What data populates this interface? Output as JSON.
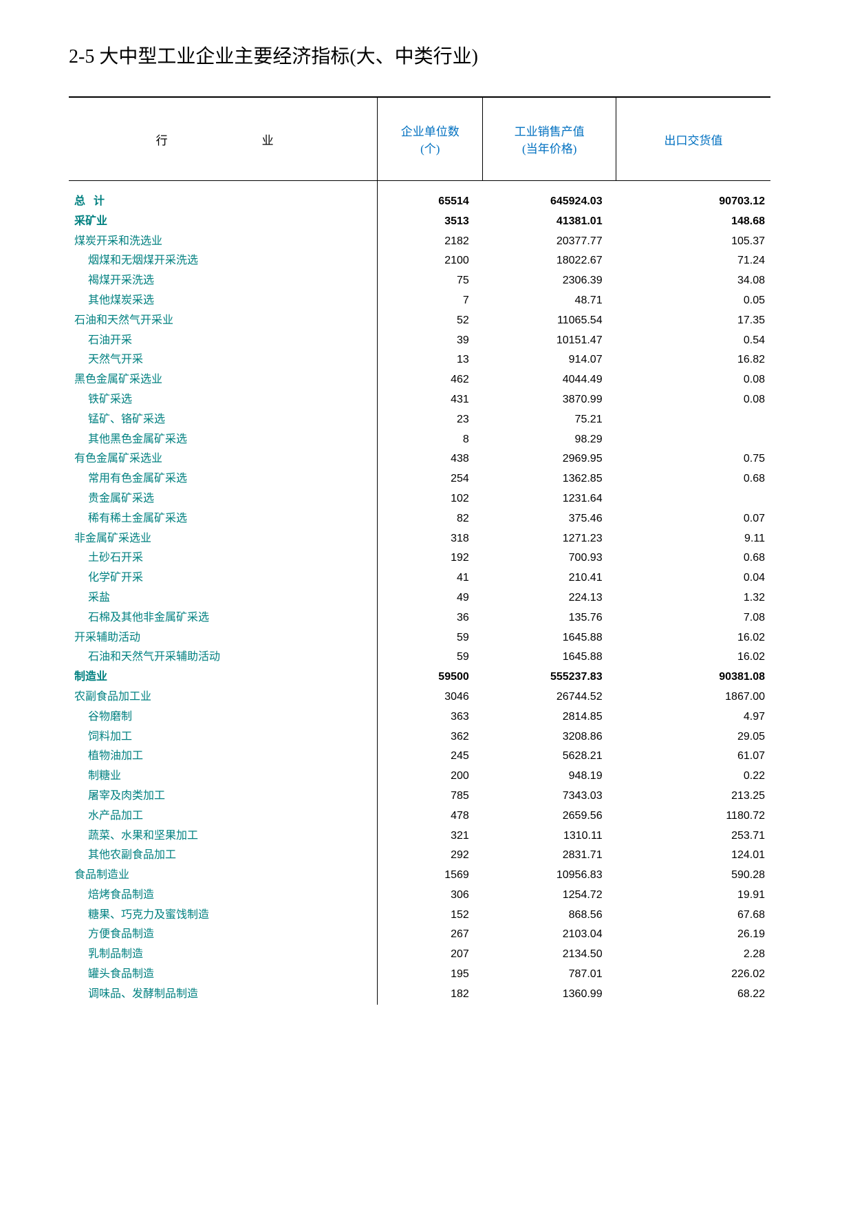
{
  "title": "2-5  大中型工业企业主要经济指标(大、中类行业)",
  "headers": {
    "industry": "行业",
    "count": "企业单位数\n(个)",
    "sales": "工业销售产值\n(当年价格)",
    "export": "出口交货值"
  },
  "table": {
    "col_widths_pct": [
      44,
      15,
      19,
      22
    ],
    "header_color": "#0070c0",
    "teal_color": "#008080",
    "border_color": "#000000",
    "font_size_body": 16,
    "font_size_header": 17,
    "font_size_title": 28
  },
  "rows": [
    {
      "label": "总计",
      "indent": 0,
      "teal": true,
      "bold": true,
      "spaced": true,
      "count": "65514",
      "sales": "645924.03",
      "export": "90703.12"
    },
    {
      "label": "采矿业",
      "indent": 0,
      "teal": true,
      "bold": true,
      "count": "3513",
      "sales": "41381.01",
      "export": "148.68"
    },
    {
      "label": "煤炭开采和洗选业",
      "indent": 0,
      "teal": true,
      "count": "2182",
      "sales": "20377.77",
      "export": "105.37"
    },
    {
      "label": "烟煤和无烟煤开采洗选",
      "indent": 2,
      "teal": true,
      "count": "2100",
      "sales": "18022.67",
      "export": "71.24"
    },
    {
      "label": "褐煤开采洗选",
      "indent": 2,
      "teal": true,
      "count": "75",
      "sales": "2306.39",
      "export": "34.08"
    },
    {
      "label": "其他煤炭采选",
      "indent": 2,
      "teal": true,
      "count": "7",
      "sales": "48.71",
      "export": "0.05"
    },
    {
      "label": "石油和天然气开采业",
      "indent": 0,
      "teal": true,
      "count": "52",
      "sales": "11065.54",
      "export": "17.35"
    },
    {
      "label": "石油开采",
      "indent": 2,
      "teal": true,
      "count": "39",
      "sales": "10151.47",
      "export": "0.54"
    },
    {
      "label": "天然气开采",
      "indent": 2,
      "teal": true,
      "count": "13",
      "sales": "914.07",
      "export": "16.82"
    },
    {
      "label": "黑色金属矿采选业",
      "indent": 0,
      "teal": true,
      "count": "462",
      "sales": "4044.49",
      "export": "0.08"
    },
    {
      "label": "铁矿采选",
      "indent": 2,
      "teal": true,
      "count": "431",
      "sales": "3870.99",
      "export": "0.08"
    },
    {
      "label": "锰矿、铬矿采选",
      "indent": 2,
      "teal": true,
      "count": "23",
      "sales": "75.21",
      "export": ""
    },
    {
      "label": "其他黑色金属矿采选",
      "indent": 2,
      "teal": true,
      "count": "8",
      "sales": "98.29",
      "export": ""
    },
    {
      "label": "有色金属矿采选业",
      "indent": 0,
      "teal": true,
      "count": "438",
      "sales": "2969.95",
      "export": "0.75"
    },
    {
      "label": "常用有色金属矿采选",
      "indent": 2,
      "teal": true,
      "count": "254",
      "sales": "1362.85",
      "export": "0.68"
    },
    {
      "label": "贵金属矿采选",
      "indent": 2,
      "teal": true,
      "count": "102",
      "sales": "1231.64",
      "export": ""
    },
    {
      "label": "稀有稀土金属矿采选",
      "indent": 2,
      "teal": true,
      "count": "82",
      "sales": "375.46",
      "export": "0.07"
    },
    {
      "label": "非金属矿采选业",
      "indent": 0,
      "teal": true,
      "count": "318",
      "sales": "1271.23",
      "export": "9.11"
    },
    {
      "label": "土砂石开采",
      "indent": 2,
      "teal": true,
      "count": "192",
      "sales": "700.93",
      "export": "0.68"
    },
    {
      "label": "化学矿开采",
      "indent": 2,
      "teal": true,
      "count": "41",
      "sales": "210.41",
      "export": "0.04"
    },
    {
      "label": "采盐",
      "indent": 2,
      "teal": true,
      "count": "49",
      "sales": "224.13",
      "export": "1.32"
    },
    {
      "label": "石棉及其他非金属矿采选",
      "indent": 2,
      "teal": true,
      "count": "36",
      "sales": "135.76",
      "export": "7.08"
    },
    {
      "label": "开采辅助活动",
      "indent": 0,
      "teal": true,
      "count": "59",
      "sales": "1645.88",
      "export": "16.02"
    },
    {
      "label": "石油和天然气开采辅助活动",
      "indent": 2,
      "teal": true,
      "count": "59",
      "sales": "1645.88",
      "export": "16.02"
    },
    {
      "label": "制造业",
      "indent": 0,
      "teal": true,
      "bold": true,
      "count": "59500",
      "sales": "555237.83",
      "export": "90381.08"
    },
    {
      "label": "农副食品加工业",
      "indent": 0,
      "teal": true,
      "count": "3046",
      "sales": "26744.52",
      "export": "1867.00"
    },
    {
      "label": "谷物磨制",
      "indent": 2,
      "teal": true,
      "count": "363",
      "sales": "2814.85",
      "export": "4.97"
    },
    {
      "label": "饲料加工",
      "indent": 2,
      "teal": true,
      "count": "362",
      "sales": "3208.86",
      "export": "29.05"
    },
    {
      "label": "植物油加工",
      "indent": 2,
      "teal": true,
      "count": "245",
      "sales": "5628.21",
      "export": "61.07"
    },
    {
      "label": "制糖业",
      "indent": 2,
      "teal": true,
      "count": "200",
      "sales": "948.19",
      "export": "0.22"
    },
    {
      "label": "屠宰及肉类加工",
      "indent": 2,
      "teal": true,
      "count": "785",
      "sales": "7343.03",
      "export": "213.25"
    },
    {
      "label": "水产品加工",
      "indent": 2,
      "teal": true,
      "count": "478",
      "sales": "2659.56",
      "export": "1180.72"
    },
    {
      "label": "蔬菜、水果和坚果加工",
      "indent": 2,
      "teal": true,
      "count": "321",
      "sales": "1310.11",
      "export": "253.71"
    },
    {
      "label": "其他农副食品加工",
      "indent": 2,
      "teal": true,
      "count": "292",
      "sales": "2831.71",
      "export": "124.01"
    },
    {
      "label": "食品制造业",
      "indent": 0,
      "teal": true,
      "count": "1569",
      "sales": "10956.83",
      "export": "590.28"
    },
    {
      "label": "焙烤食品制造",
      "indent": 2,
      "teal": true,
      "count": "306",
      "sales": "1254.72",
      "export": "19.91"
    },
    {
      "label": "糖果、巧克力及蜜饯制造",
      "indent": 2,
      "teal": true,
      "count": "152",
      "sales": "868.56",
      "export": "67.68"
    },
    {
      "label": "方便食品制造",
      "indent": 2,
      "teal": true,
      "count": "267",
      "sales": "2103.04",
      "export": "26.19"
    },
    {
      "label": "乳制品制造",
      "indent": 2,
      "teal": true,
      "count": "207",
      "sales": "2134.50",
      "export": "2.28"
    },
    {
      "label": "罐头食品制造",
      "indent": 2,
      "teal": true,
      "count": "195",
      "sales": "787.01",
      "export": "226.02"
    },
    {
      "label": "调味品、发酵制品制造",
      "indent": 2,
      "teal": true,
      "count": "182",
      "sales": "1360.99",
      "export": "68.22"
    }
  ]
}
